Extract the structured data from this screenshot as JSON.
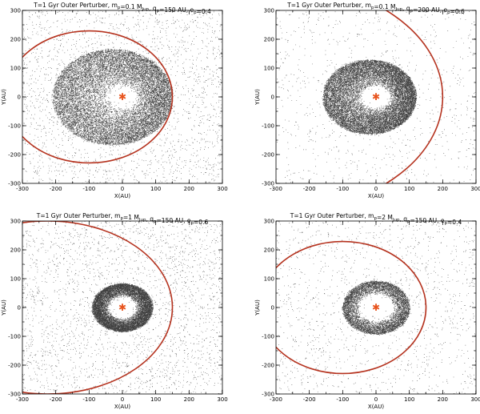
{
  "chart_data": [
    {
      "type": "scatter",
      "title": "T=1 Gyr  Outer Perturber, m_p=0.1 M_Jup, q_p=150 AU, e_p=0.4",
      "title_parts": {
        "prefix": "T=1 Gyr  Outer Perturber, m",
        "msub": "p",
        "mass": "=0.1 M",
        "jsub": "Jup",
        "q": ", q",
        "qsub": "p",
        "qval": "=150 AU, e",
        "esub": "p",
        "eval": "=0.4"
      },
      "xlabel": "X(AU)",
      "ylabel": "Y(AU)",
      "xlim": [
        -300,
        300
      ],
      "ylim": [
        -300,
        300
      ],
      "xticks": [
        "-300",
        "-200",
        "-100",
        "0",
        "100",
        "200",
        "300"
      ],
      "yticks": [
        "-300",
        "-200",
        "-100",
        "0",
        "100",
        "200",
        "300"
      ],
      "star": {
        "x": 0,
        "y": 0,
        "color": "#e8551f"
      },
      "perturber_orbit": {
        "q_au": 150,
        "e": 0.4,
        "color": "#b5321e"
      },
      "disk": {
        "background_density": 0.9,
        "ring_inner_au": 40,
        "ring_outer_au": 180,
        "ring_density": 7.0,
        "ring_shift_x_au": -30,
        "ring_ecc": 0.0
      },
      "grid": false
    },
    {
      "type": "scatter",
      "title": "T=1 Gyr  Outer Perturber, m_p=0.1 M_Jup, q_p=200 AU, e_p=0.6",
      "title_parts": {
        "prefix": "T=1 Gyr  Outer Perturber, m",
        "msub": "p",
        "mass": "=0.1 M",
        "jsub": "Jup",
        "q": ", q",
        "qsub": "p",
        "qval": "=200 AU, e",
        "esub": "p",
        "eval": "=0.6"
      },
      "xlabel": "X(AU)",
      "ylabel": "Y(AU)",
      "xlim": [
        -300,
        300
      ],
      "ylim": [
        -300,
        300
      ],
      "xticks": [
        "-300",
        "-200",
        "-100",
        "0",
        "100",
        "200",
        "300"
      ],
      "yticks": [
        "-300",
        "-200",
        "-100",
        "0",
        "100",
        "200",
        "300"
      ],
      "star": {
        "x": 0,
        "y": 0,
        "color": "#e8551f"
      },
      "perturber_orbit": {
        "q_au": 200,
        "e": 0.6,
        "color": "#b5321e"
      },
      "disk": {
        "background_density": 0.35,
        "ring_inner_au": 40,
        "ring_outer_au": 140,
        "ring_density": 7.5,
        "ring_shift_x_au": -20,
        "ring_ecc": 0.0
      },
      "grid": false
    },
    {
      "type": "scatter",
      "title": "T=1 Gyr  Outer Perturber, m_p=1 M_Jup, q_p=150 AU, e_p=0.6",
      "title_parts": {
        "prefix": "T=1 Gyr  Outer Perturber, m",
        "msub": "p",
        "mass": "=1 M",
        "jsub": "Jup",
        "q": ", q",
        "qsub": "p",
        "qval": "=150 AU, e",
        "esub": "p",
        "eval": "=0.6"
      },
      "xlabel": "X(AU)",
      "ylabel": "Y(AU)",
      "xlim": [
        -300,
        300
      ],
      "ylim": [
        -300,
        300
      ],
      "xticks": [
        "-300",
        "-200",
        "-100",
        "0",
        "100",
        "200",
        "300"
      ],
      "yticks": [
        "-300",
        "-200",
        "-100",
        "0",
        "100",
        "200",
        "300"
      ],
      "star": {
        "x": 0,
        "y": 0,
        "color": "#e8551f"
      },
      "perturber_orbit": {
        "q_au": 150,
        "e": 0.6,
        "color": "#b5321e"
      },
      "disk": {
        "background_density": 1.0,
        "ring_inner_au": 40,
        "ring_outer_au": 90,
        "ring_density": 5.0,
        "ring_shift_x_au": 0,
        "ring_ecc": 0.0
      },
      "grid": false
    },
    {
      "type": "scatter",
      "title": "T=1 Gyr  Outer Perturber, m_p=2 M_Jup, q_p=150 AU, e_p=0.4",
      "title_parts": {
        "prefix": "T=1 Gyr  Outer Perturber, m",
        "msub": "p",
        "mass": "=2 M",
        "jsub": "Jup",
        "q": ", q",
        "qsub": "p",
        "qval": "=150 AU, e",
        "esub": "p",
        "eval": "=0.4"
      },
      "xlabel": "X(AU)",
      "ylabel": "Y(AU)",
      "xlim": [
        -300,
        300
      ],
      "ylim": [
        -300,
        300
      ],
      "xticks": [
        "-300",
        "-200",
        "-100",
        "0",
        "100",
        "200",
        "300"
      ],
      "yticks": [
        "-300",
        "-200",
        "-100",
        "0",
        "100",
        "200",
        "300"
      ],
      "star": {
        "x": 0,
        "y": 0,
        "color": "#e8551f"
      },
      "perturber_orbit": {
        "q_au": 150,
        "e": 0.4,
        "color": "#b5321e"
      },
      "disk": {
        "background_density": 0.55,
        "ring_inner_au": 50,
        "ring_outer_au": 100,
        "ring_density": 3.0,
        "ring_shift_x_au": 0,
        "ring_ecc": 0.0
      },
      "grid": false
    }
  ]
}
